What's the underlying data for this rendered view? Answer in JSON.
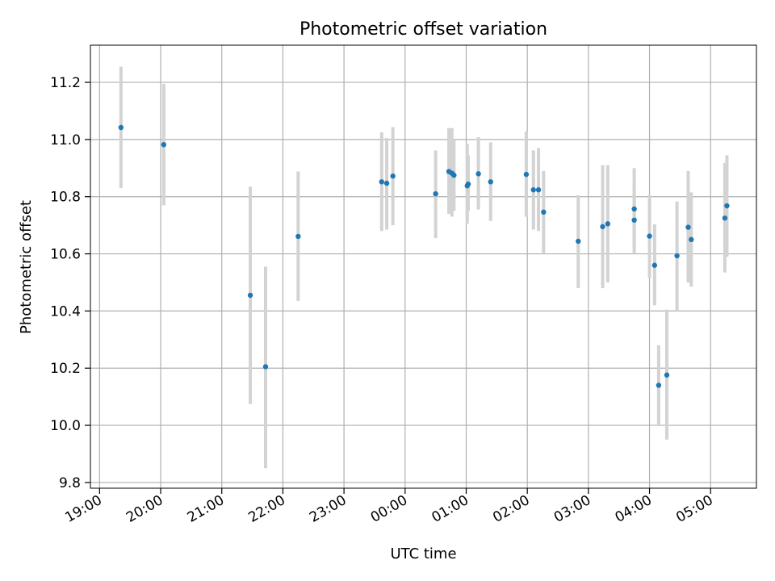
{
  "chart_data": {
    "type": "scatter",
    "title": "Photometric offset variation",
    "xlabel": "UTC time",
    "ylabel": "Photometric offset",
    "x_axis_type": "time",
    "x_range": [
      "18:51",
      "05:45"
    ],
    "ylim": [
      9.78,
      11.33
    ],
    "x_ticks": [
      "19:00",
      "20:00",
      "21:00",
      "22:00",
      "23:00",
      "00:00",
      "01:00",
      "02:00",
      "03:00",
      "04:00",
      "05:00"
    ],
    "y_ticks": [
      9.8,
      10.0,
      10.2,
      10.4,
      10.6,
      10.8,
      11.0,
      11.2
    ],
    "grid": true,
    "marker_color": "#1f77b4",
    "errorbar_color": "#d3d3d3",
    "points": [
      {
        "time": "19:21",
        "y": 11.042,
        "low": 10.83,
        "high": 11.255
      },
      {
        "time": "20:03",
        "y": 10.982,
        "low": 10.77,
        "high": 11.195
      },
      {
        "time": "21:28",
        "y": 10.455,
        "low": 10.075,
        "high": 10.835
      },
      {
        "time": "21:43",
        "y": 10.205,
        "low": 9.85,
        "high": 10.555
      },
      {
        "time": "22:15",
        "y": 10.661,
        "low": 10.435,
        "high": 10.888
      },
      {
        "time": "23:37",
        "y": 10.852,
        "low": 10.68,
        "high": 11.025
      },
      {
        "time": "23:42",
        "y": 10.847,
        "low": 10.685,
        "high": 11.005
      },
      {
        "time": "23:48",
        "y": 10.872,
        "low": 10.7,
        "high": 11.043
      },
      {
        "time": "00:30",
        "y": 10.81,
        "low": 10.655,
        "high": 10.962
      },
      {
        "time": "00:43",
        "y": 10.888,
        "low": 10.74,
        "high": 11.04
      },
      {
        "time": "00:46",
        "y": 10.882,
        "low": 10.73,
        "high": 11.04
      },
      {
        "time": "00:48",
        "y": 10.875,
        "low": 10.75,
        "high": 11.0
      },
      {
        "time": "01:01",
        "y": 10.838,
        "low": 10.705,
        "high": 10.985
      },
      {
        "time": "01:02",
        "y": 10.844,
        "low": 10.75,
        "high": 10.945
      },
      {
        "time": "01:12",
        "y": 10.88,
        "low": 10.755,
        "high": 11.008
      },
      {
        "time": "01:24",
        "y": 10.852,
        "low": 10.715,
        "high": 10.99
      },
      {
        "time": "01:59",
        "y": 10.878,
        "low": 10.73,
        "high": 11.028
      },
      {
        "time": "02:06",
        "y": 10.824,
        "low": 10.685,
        "high": 10.962
      },
      {
        "time": "02:11",
        "y": 10.824,
        "low": 10.68,
        "high": 10.97
      },
      {
        "time": "02:16",
        "y": 10.746,
        "low": 10.6,
        "high": 10.89
      },
      {
        "time": "02:50",
        "y": 10.644,
        "low": 10.48,
        "high": 10.805
      },
      {
        "time": "03:14",
        "y": 10.695,
        "low": 10.48,
        "high": 10.91
      },
      {
        "time": "03:19",
        "y": 10.705,
        "low": 10.5,
        "high": 10.91
      },
      {
        "time": "03:45",
        "y": 10.757,
        "low": 10.62,
        "high": 10.9
      },
      {
        "time": "03:45",
        "y": 10.718,
        "low": 10.6,
        "high": 10.84
      },
      {
        "time": "04:00",
        "y": 10.662,
        "low": 10.515,
        "high": 10.805
      },
      {
        "time": "04:05",
        "y": 10.56,
        "low": 10.42,
        "high": 10.703
      },
      {
        "time": "04:09",
        "y": 10.14,
        "low": 10.0,
        "high": 10.28
      },
      {
        "time": "04:17",
        "y": 10.176,
        "low": 9.95,
        "high": 10.405
      },
      {
        "time": "04:27",
        "y": 10.593,
        "low": 10.4,
        "high": 10.783
      },
      {
        "time": "04:38",
        "y": 10.693,
        "low": 10.5,
        "high": 10.89
      },
      {
        "time": "04:41",
        "y": 10.65,
        "low": 10.485,
        "high": 10.815
      },
      {
        "time": "05:14",
        "y": 10.725,
        "low": 10.535,
        "high": 10.918
      },
      {
        "time": "05:16",
        "y": 10.768,
        "low": 10.59,
        "high": 10.945
      }
    ]
  }
}
